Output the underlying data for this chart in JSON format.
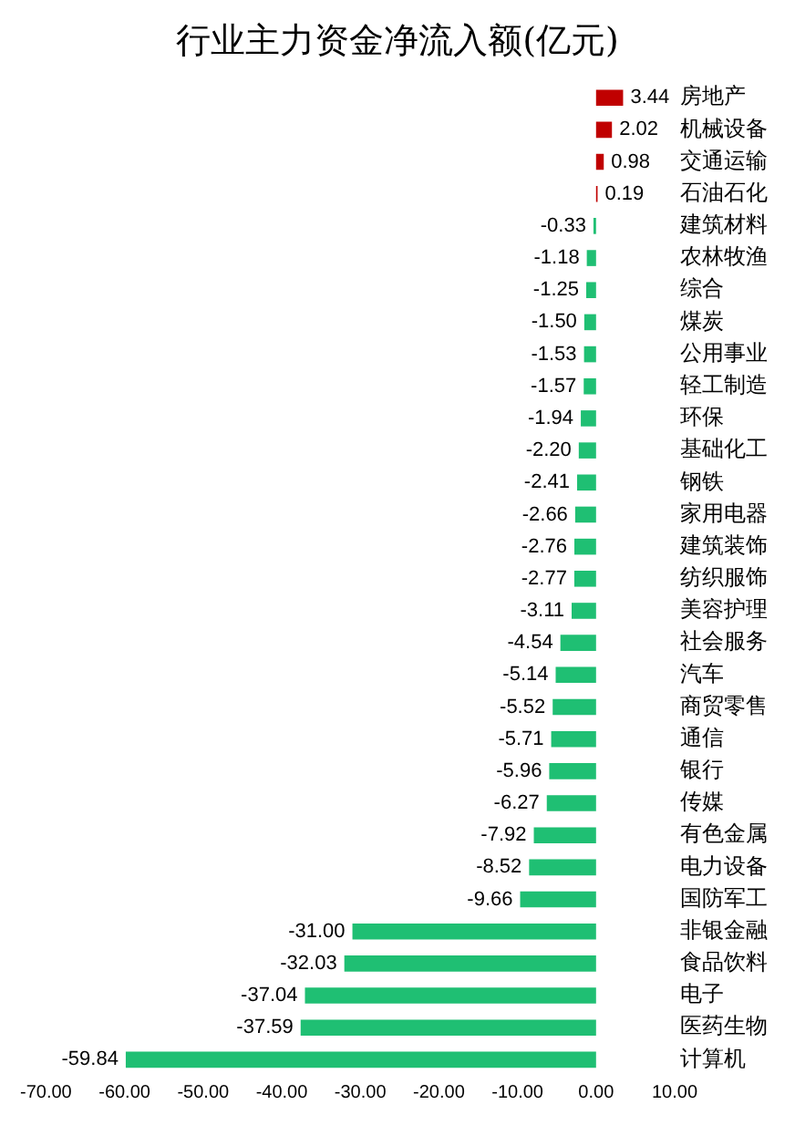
{
  "chart_data": {
    "type": "bar",
    "orientation": "horizontal",
    "title": "行业主力资金净流入额(亿元)",
    "categories": [
      "房地产",
      "机械设备",
      "交通运输",
      "石油石化",
      "建筑材料",
      "农林牧渔",
      "综合",
      "煤炭",
      "公用事业",
      "轻工制造",
      "环保",
      "基础化工",
      "钢铁",
      "家用电器",
      "建筑装饰",
      "纺织服饰",
      "美容护理",
      "社会服务",
      "汽车",
      "商贸零售",
      "通信",
      "银行",
      "传媒",
      "有色金属",
      "电力设备",
      "国防军工",
      "非银金融",
      "食品饮料",
      "电子",
      "医药生物",
      "计算机"
    ],
    "values": [
      3.44,
      2.02,
      0.98,
      0.19,
      -0.33,
      -1.18,
      -1.25,
      -1.5,
      -1.53,
      -1.57,
      -1.94,
      -2.2,
      -2.41,
      -2.66,
      -2.76,
      -2.77,
      -3.11,
      -4.54,
      -5.14,
      -5.52,
      -5.71,
      -5.96,
      -6.27,
      -7.92,
      -8.52,
      -9.66,
      -31,
      -32.03,
      -37.04,
      -37.59,
      -59.84
    ],
    "value_labels": [
      "3.44",
      "2.02",
      "0.98",
      "0.19",
      "-0.33",
      "-1.18",
      "-1.25",
      "-1.50",
      "-1.53",
      "-1.57",
      "-1.94",
      "-2.20",
      "-2.41",
      "-2.66",
      "-2.76",
      "-2.77",
      "-3.11",
      "-4.54",
      "-5.14",
      "-5.52",
      "-5.71",
      "-5.96",
      "-6.27",
      "-7.92",
      "-8.52",
      "-9.66",
      "-31.00",
      "-32.03",
      "-37.04",
      "-37.59",
      "-59.84"
    ],
    "colors": [
      "#c00000",
      "#c00000",
      "#c00000",
      "#c00000",
      "#1fbf73",
      "#1fbf73",
      "#1fbf73",
      "#1fbf73",
      "#1fbf73",
      "#1fbf73",
      "#1fbf73",
      "#1fbf73",
      "#1fbf73",
      "#1fbf73",
      "#1fbf73",
      "#1fbf73",
      "#1fbf73",
      "#1fbf73",
      "#1fbf73",
      "#1fbf73",
      "#1fbf73",
      "#1fbf73",
      "#1fbf73",
      "#1fbf73",
      "#1fbf73",
      "#1fbf73",
      "#1fbf73",
      "#1fbf73",
      "#1fbf73",
      "#1fbf73",
      "#1fbf73"
    ],
    "xlim": [
      -70,
      10
    ],
    "xticks": [
      {
        "value": -70,
        "label": "-70.00"
      },
      {
        "value": -60,
        "label": "-60.00"
      },
      {
        "value": -50,
        "label": "-50.00"
      },
      {
        "value": -40,
        "label": "-40.00"
      },
      {
        "value": -30,
        "label": "-30.00"
      },
      {
        "value": -20,
        "label": "-20.00"
      },
      {
        "value": -10,
        "label": "-10.00"
      },
      {
        "value": 0,
        "label": "0.00"
      },
      {
        "value": 10,
        "label": "10.00"
      }
    ],
    "grid": false,
    "legend": false
  }
}
